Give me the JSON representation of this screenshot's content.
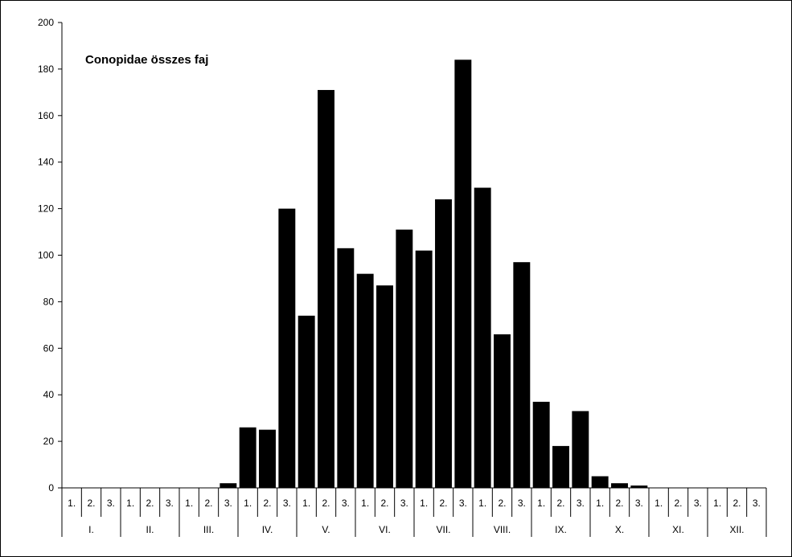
{
  "chart_data": {
    "type": "bar",
    "title": "Conopidae összes faj",
    "xlabel": "",
    "ylabel": "",
    "ylim": [
      0,
      200
    ],
    "yticks": [
      0,
      20,
      40,
      60,
      80,
      100,
      120,
      140,
      160,
      180,
      200
    ],
    "grid": false,
    "legend": "none",
    "bar_color": "#000000",
    "months": [
      "I.",
      "II.",
      "III.",
      "IV.",
      "V.",
      "VI.",
      "VII.",
      "VIII.",
      "IX.",
      "X.",
      "XI.",
      "XII."
    ],
    "decades": [
      "1.",
      "2.",
      "3."
    ],
    "categories": [
      "I. 1.",
      "I. 2.",
      "I. 3.",
      "II. 1.",
      "II. 2.",
      "II. 3.",
      "III. 1.",
      "III. 2.",
      "III. 3.",
      "IV. 1.",
      "IV. 2.",
      "IV. 3.",
      "V. 1.",
      "V. 2.",
      "V. 3.",
      "VI. 1.",
      "VI. 2.",
      "VI. 3.",
      "VII. 1.",
      "VII. 2.",
      "VII. 3.",
      "VIII. 1.",
      "VIII. 2.",
      "VIII. 3.",
      "IX. 1.",
      "IX. 2.",
      "IX. 3.",
      "X. 1.",
      "X. 2.",
      "X. 3.",
      "XI. 1.",
      "XI. 2.",
      "XI. 3.",
      "XII. 1.",
      "XII. 2.",
      "XII. 3."
    ],
    "values": [
      0,
      0,
      0,
      0,
      0,
      0,
      0,
      0,
      2,
      26,
      25,
      120,
      74,
      171,
      103,
      92,
      87,
      111,
      102,
      124,
      184,
      129,
      66,
      97,
      37,
      18,
      33,
      5,
      2,
      1,
      0,
      0,
      0,
      0,
      0,
      0
    ]
  }
}
